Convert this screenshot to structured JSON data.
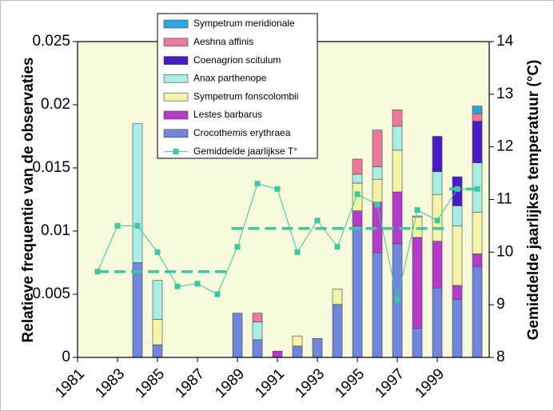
{
  "chart_data": {
    "type": "bar",
    "stacked": true,
    "y_label": "Relatieve frequentie van de observaties",
    "y2_label": "Gemiddelde jaarlijkse temperatuur (°C)",
    "x": [
      1982,
      1983,
      1984,
      1985,
      1986,
      1987,
      1988,
      1989,
      1990,
      1991,
      1992,
      1993,
      1994,
      1995,
      1996,
      1997,
      1998,
      1999,
      2000,
      2001
    ],
    "xlim": [
      1981,
      2001.6
    ],
    "xticks": [
      1981,
      1983,
      1985,
      1987,
      1989,
      1991,
      1993,
      1995,
      1997,
      1999
    ],
    "ylim": [
      0,
      0.025
    ],
    "yticks": [
      0,
      0.005,
      0.01,
      0.015,
      0.02,
      0.025
    ],
    "y2lim": [
      8,
      14
    ],
    "y2ticks": [
      8,
      9,
      10,
      11,
      12,
      13,
      14
    ],
    "background": "#f6f9dc",
    "series": [
      {
        "name": "Crocothemis erythraea",
        "color": "#7086dc",
        "values": [
          null,
          null,
          0.0075,
          0.001,
          null,
          null,
          null,
          0.0035,
          0.0014,
          null,
          0.0009,
          0.0015,
          0.0042,
          0.0104,
          0.0083,
          0.009,
          0.0023,
          0.0055,
          0.0046,
          0.0072
        ]
      },
      {
        "name": "Lestes barbarus",
        "color": "#b43ccc",
        "values": [
          null,
          null,
          null,
          null,
          null,
          null,
          null,
          null,
          null,
          0.0005,
          null,
          null,
          null,
          0.0012,
          0.004,
          0.0041,
          0.0072,
          0.0037,
          0.0011,
          0.001
        ]
      },
      {
        "name": "Sympetrum fonscolombii",
        "color": "#f4f4a8",
        "values": [
          null,
          null,
          null,
          0.002,
          null,
          null,
          null,
          null,
          null,
          null,
          0.0008,
          null,
          0.0012,
          0.0022,
          0.0018,
          0.0033,
          0.0016,
          0.0037,
          0.0047,
          0.0033
        ]
      },
      {
        "name": "Anax parthenope",
        "color": "#a8eee4",
        "values": [
          null,
          null,
          0.011,
          0.0031,
          null,
          null,
          null,
          null,
          0.0014,
          null,
          null,
          null,
          null,
          0.0007,
          0.001,
          0.0019,
          0.0001,
          0.0018,
          0.0016,
          0.0039
        ]
      },
      {
        "name": "Coenagrion scitulum",
        "color": "#4a1cc8",
        "values": [
          null,
          null,
          null,
          null,
          null,
          null,
          null,
          null,
          null,
          null,
          null,
          null,
          null,
          null,
          null,
          null,
          null,
          0.0028,
          0.0023,
          0.0033
        ]
      },
      {
        "name": "Aeshna affinis",
        "color": "#ea7a9a",
        "values": [
          null,
          null,
          null,
          null,
          null,
          null,
          null,
          null,
          0.0007,
          null,
          null,
          null,
          null,
          0.0012,
          0.0029,
          0.0013,
          null,
          null,
          null,
          0.0006
        ]
      },
      {
        "name": "Sympetrum meridionale",
        "color": "#2aa8e0",
        "values": [
          null,
          null,
          null,
          null,
          null,
          null,
          null,
          null,
          null,
          null,
          null,
          null,
          null,
          null,
          null,
          null,
          null,
          null,
          null,
          0.0006
        ]
      },
      {
        "name": "Gemiddelde jaarlijkse T°",
        "type": "line",
        "axis": "y2",
        "color": "#3cc8a0",
        "values": [
          9.63,
          10.5,
          10.5,
          10.0,
          9.35,
          9.4,
          9.2,
          10.1,
          11.3,
          11.2,
          10.0,
          10.6,
          10.1,
          11.1,
          10.9,
          9.1,
          10.8,
          10.6,
          11.2,
          11.2
        ]
      }
    ],
    "mean_lines": [
      {
        "x": [
          1982,
          1988.5
        ],
        "value": 9.63
      },
      {
        "x": [
          1988.7,
          1999.6
        ],
        "value": 10.45
      },
      {
        "x": [
          1999.6,
          2001
        ],
        "value": 11.2
      }
    ]
  }
}
